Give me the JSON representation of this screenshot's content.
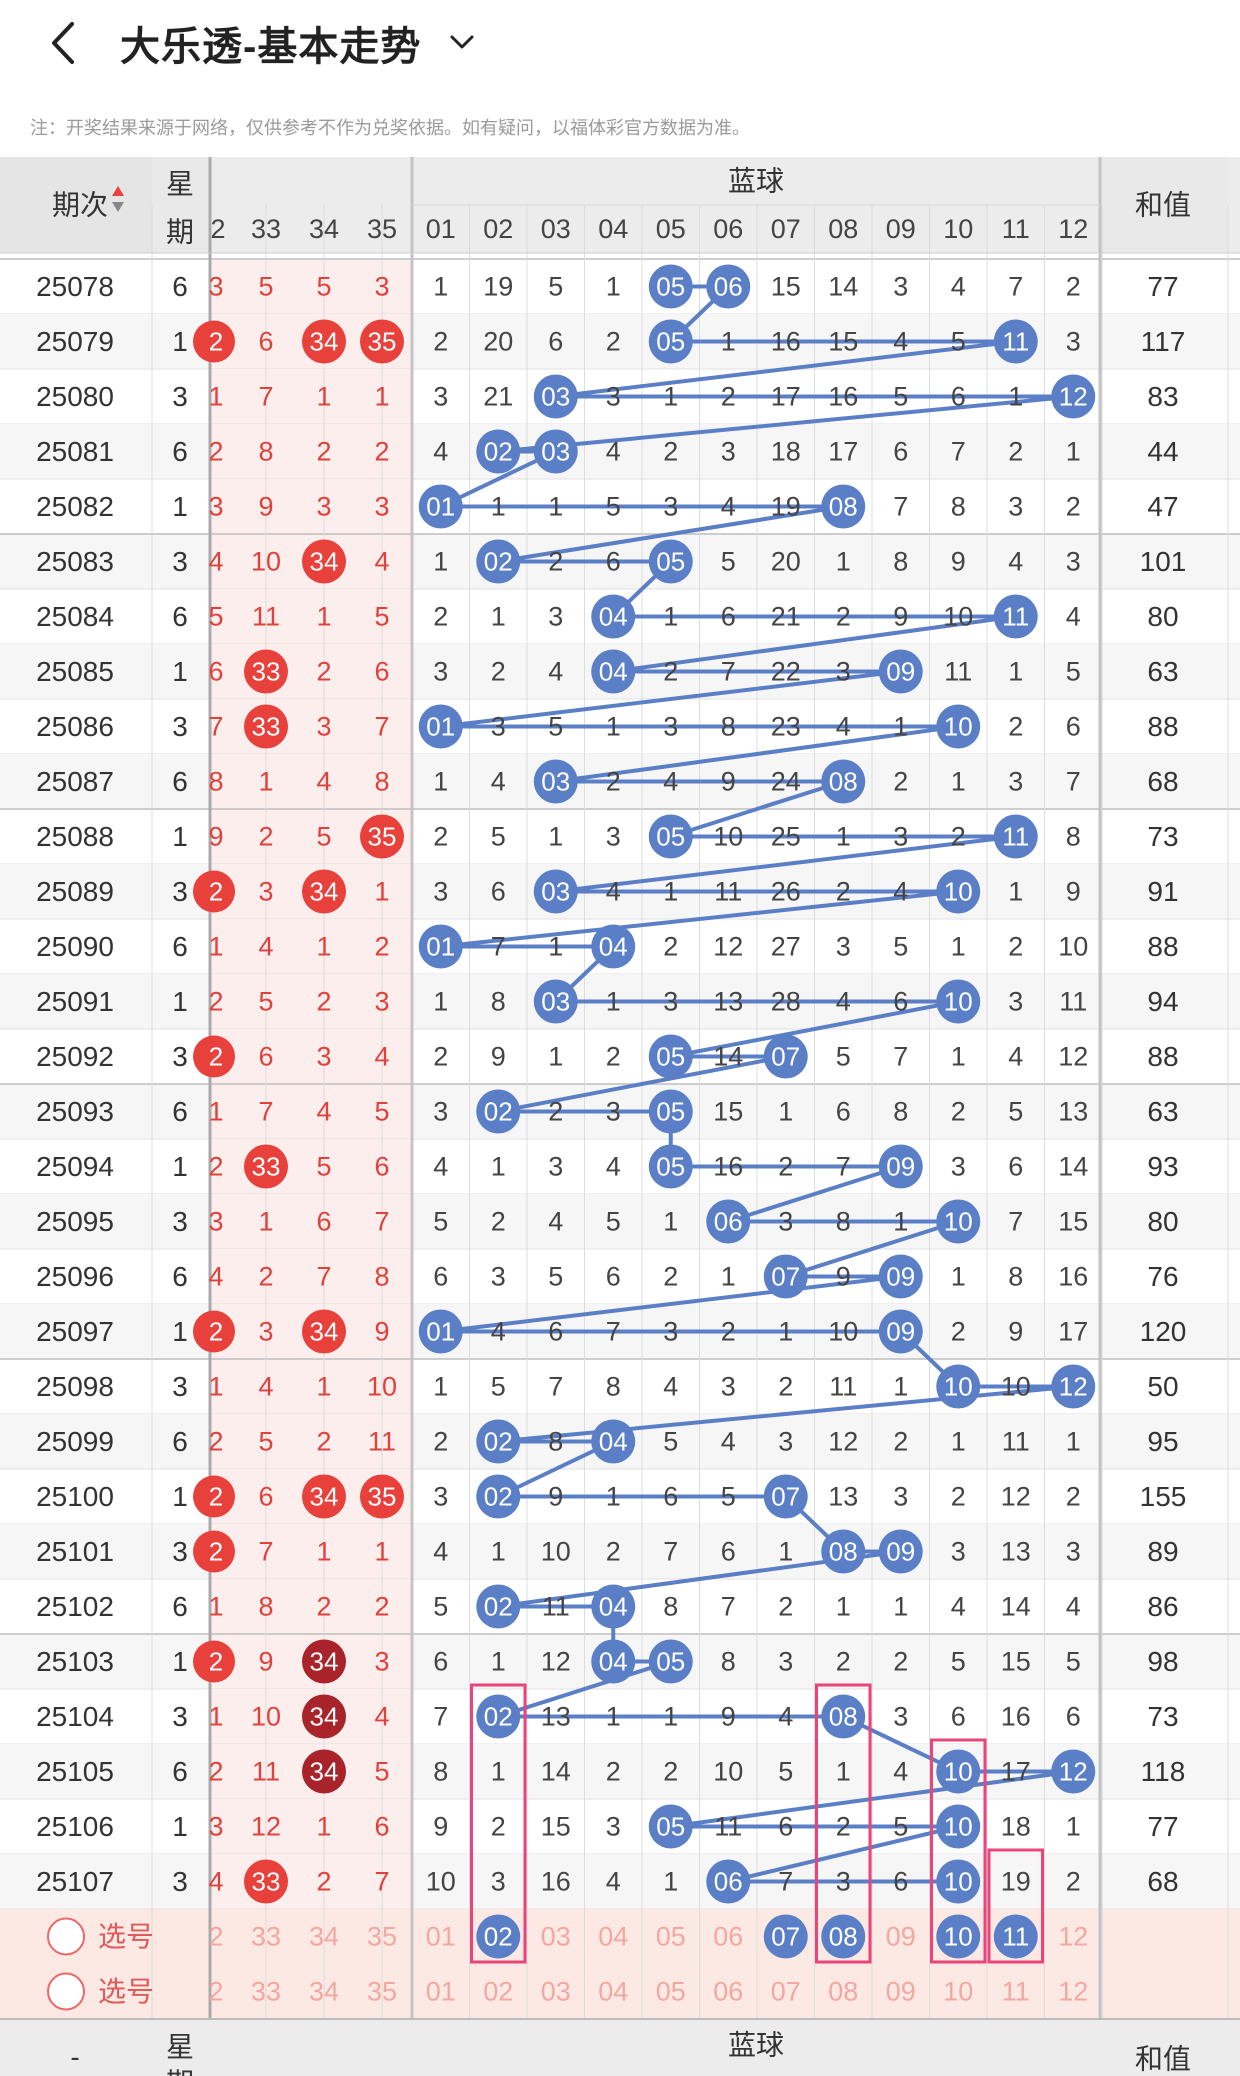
{
  "header": {
    "title": "大乐透-基本走势"
  },
  "notice": "注：开奖结果来源于网络，仅供参考不作为兑奖依据。如有疑问，以福体彩官方数据为准。",
  "columns": {
    "period": "期次",
    "weekday_a": "星",
    "weekday_b": "期",
    "blue_header": "蓝球",
    "sum": "和值",
    "front_partial": "2",
    "front": [
      "33",
      "34",
      "35"
    ],
    "blue": [
      "01",
      "02",
      "03",
      "04",
      "05",
      "06",
      "07",
      "08",
      "09",
      "10",
      "11",
      "12"
    ]
  },
  "rows": [
    {
      "p": "25078",
      "w": "6",
      "fp": "3",
      "f": [
        "5",
        "5",
        "3"
      ],
      "fh": [],
      "b": [
        1,
        19,
        5,
        1,
        0,
        0,
        15,
        14,
        3,
        4,
        7,
        2
      ],
      "hit": [
        5,
        6
      ],
      "s": "77"
    },
    {
      "p": "25079",
      "w": "1",
      "fp": "2",
      "f": [
        "6",
        "34",
        "35"
      ],
      "fh": [
        1,
        2
      ],
      "b": [
        2,
        20,
        6,
        2,
        0,
        1,
        16,
        15,
        4,
        5,
        0,
        3
      ],
      "hit": [
        5,
        11
      ],
      "s": "117",
      "fpr": true
    },
    {
      "p": "25080",
      "w": "3",
      "fp": "1",
      "f": [
        "7",
        "1",
        "1"
      ],
      "fh": [],
      "b": [
        3,
        21,
        0,
        3,
        1,
        2,
        17,
        16,
        5,
        6,
        1,
        0
      ],
      "hit": [
        3,
        12
      ],
      "s": "83"
    },
    {
      "p": "25081",
      "w": "6",
      "fp": "2",
      "f": [
        "8",
        "2",
        "2"
      ],
      "fh": [],
      "b": [
        4,
        0,
        0,
        4,
        2,
        3,
        18,
        17,
        6,
        7,
        2,
        1
      ],
      "hit": [
        2,
        3
      ],
      "s": "44"
    },
    {
      "p": "25082",
      "w": "1",
      "fp": "3",
      "f": [
        "9",
        "3",
        "3"
      ],
      "fh": [],
      "b": [
        0,
        1,
        1,
        5,
        3,
        4,
        19,
        0,
        7,
        8,
        3,
        2
      ],
      "hit": [
        1,
        8
      ],
      "s": "47"
    },
    {
      "p": "25083",
      "w": "3",
      "fp": "4",
      "f": [
        "10",
        "34",
        "4"
      ],
      "fh": [
        1
      ],
      "b": [
        1,
        0,
        2,
        6,
        0,
        5,
        20,
        1,
        8,
        9,
        4,
        3
      ],
      "hit": [
        2,
        5
      ],
      "s": "101"
    },
    {
      "p": "25084",
      "w": "6",
      "fp": "5",
      "f": [
        "11",
        "1",
        "5"
      ],
      "fh": [],
      "b": [
        2,
        1,
        3,
        0,
        1,
        6,
        21,
        2,
        9,
        10,
        0,
        4
      ],
      "hit": [
        4,
        11
      ],
      "s": "80"
    },
    {
      "p": "25085",
      "w": "1",
      "fp": "6",
      "f": [
        "33",
        "2",
        "6"
      ],
      "fh": [
        0
      ],
      "b": [
        3,
        2,
        4,
        0,
        2,
        7,
        22,
        3,
        0,
        11,
        1,
        5
      ],
      "hit": [
        4,
        9
      ],
      "s": "63"
    },
    {
      "p": "25086",
      "w": "3",
      "fp": "7",
      "f": [
        "33",
        "3",
        "7"
      ],
      "fh": [
        0
      ],
      "b": [
        0,
        3,
        5,
        1,
        3,
        8,
        23,
        4,
        1,
        0,
        2,
        6
      ],
      "hit": [
        1,
        10
      ],
      "s": "88"
    },
    {
      "p": "25087",
      "w": "6",
      "fp": "8",
      "f": [
        "1",
        "4",
        "8"
      ],
      "fh": [],
      "b": [
        1,
        4,
        0,
        2,
        4,
        9,
        24,
        0,
        2,
        1,
        3,
        7
      ],
      "hit": [
        3,
        8
      ],
      "s": "68"
    },
    {
      "p": "25088",
      "w": "1",
      "fp": "9",
      "f": [
        "2",
        "5",
        "35"
      ],
      "fh": [
        2
      ],
      "b": [
        2,
        5,
        1,
        3,
        0,
        10,
        25,
        1,
        3,
        2,
        0,
        8
      ],
      "hit": [
        5,
        11
      ],
      "s": "73"
    },
    {
      "p": "25089",
      "w": "3",
      "fp": "2",
      "f": [
        "3",
        "34",
        "1"
      ],
      "fh": [
        1
      ],
      "b": [
        3,
        6,
        0,
        4,
        1,
        11,
        26,
        2,
        4,
        0,
        1,
        9
      ],
      "hit": [
        3,
        10
      ],
      "s": "91",
      "fpr": true
    },
    {
      "p": "25090",
      "w": "6",
      "fp": "1",
      "f": [
        "4",
        "1",
        "2"
      ],
      "fh": [],
      "b": [
        0,
        7,
        1,
        0,
        2,
        12,
        27,
        3,
        5,
        1,
        2,
        10
      ],
      "hit": [
        1,
        4
      ],
      "s": "88"
    },
    {
      "p": "25091",
      "w": "1",
      "fp": "2",
      "f": [
        "5",
        "2",
        "3"
      ],
      "fh": [],
      "b": [
        1,
        8,
        0,
        1,
        3,
        13,
        28,
        4,
        6,
        0,
        3,
        11
      ],
      "hit": [
        3,
        10
      ],
      "s": "94"
    },
    {
      "p": "25092",
      "w": "3",
      "fp": "2",
      "f": [
        "6",
        "3",
        "4"
      ],
      "fh": [],
      "b": [
        2,
        9,
        1,
        2,
        0,
        14,
        0,
        5,
        7,
        1,
        4,
        12
      ],
      "hit": [
        5,
        7
      ],
      "s": "88",
      "fpr": true
    },
    {
      "p": "25093",
      "w": "6",
      "fp": "1",
      "f": [
        "7",
        "4",
        "5"
      ],
      "fh": [],
      "b": [
        3,
        0,
        2,
        3,
        0,
        15,
        1,
        6,
        8,
        2,
        5,
        13
      ],
      "hit": [
        2,
        5
      ],
      "s": "63"
    },
    {
      "p": "25094",
      "w": "1",
      "fp": "2",
      "f": [
        "33",
        "5",
        "6"
      ],
      "fh": [
        0
      ],
      "b": [
        4,
        1,
        3,
        4,
        0,
        16,
        2,
        7,
        0,
        3,
        6,
        14
      ],
      "hit": [
        5,
        9
      ],
      "s": "93"
    },
    {
      "p": "25095",
      "w": "3",
      "fp": "3",
      "f": [
        "1",
        "6",
        "7"
      ],
      "fh": [],
      "b": [
        5,
        2,
        4,
        5,
        1,
        0,
        3,
        8,
        1,
        0,
        7,
        15
      ],
      "hit": [
        6,
        10
      ],
      "s": "80"
    },
    {
      "p": "25096",
      "w": "6",
      "fp": "4",
      "f": [
        "2",
        "7",
        "8"
      ],
      "fh": [],
      "b": [
        6,
        3,
        5,
        6,
        2,
        1,
        0,
        9,
        0,
        1,
        8,
        16
      ],
      "hit": [
        7,
        9
      ],
      "s": "76"
    },
    {
      "p": "25097",
      "w": "1",
      "fp": "2",
      "f": [
        "3",
        "34",
        "9"
      ],
      "fh": [
        1
      ],
      "b": [
        0,
        4,
        6,
        7,
        3,
        2,
        1,
        10,
        0,
        2,
        9,
        17
      ],
      "hit": [
        1,
        9
      ],
      "s": "120",
      "fpr": true
    },
    {
      "p": "25098",
      "w": "3",
      "fp": "1",
      "f": [
        "4",
        "1",
        "10"
      ],
      "fh": [],
      "b": [
        1,
        5,
        7,
        8,
        4,
        3,
        2,
        11,
        1,
        0,
        10,
        0
      ],
      "hit": [
        10,
        12
      ],
      "s": "50"
    },
    {
      "p": "25099",
      "w": "6",
      "fp": "2",
      "f": [
        "5",
        "2",
        "11"
      ],
      "fh": [],
      "b": [
        2,
        0,
        8,
        0,
        5,
        4,
        3,
        12,
        2,
        1,
        11,
        1
      ],
      "hit": [
        2,
        4
      ],
      "s": "95"
    },
    {
      "p": "25100",
      "w": "1",
      "fp": "2",
      "f": [
        "6",
        "34",
        "35"
      ],
      "fh": [
        1,
        2
      ],
      "b": [
        3,
        0,
        9,
        1,
        6,
        5,
        0,
        13,
        3,
        2,
        12,
        2
      ],
      "hit": [
        2,
        7
      ],
      "s": "155",
      "fpr": true
    },
    {
      "p": "25101",
      "w": "3",
      "fp": "2",
      "f": [
        "7",
        "1",
        "1"
      ],
      "fh": [],
      "b": [
        4,
        1,
        10,
        2,
        7,
        6,
        1,
        0,
        0,
        3,
        13,
        3
      ],
      "hit": [
        8,
        9
      ],
      "s": "89",
      "fpr": true
    },
    {
      "p": "25102",
      "w": "6",
      "fp": "1",
      "f": [
        "8",
        "2",
        "2"
      ],
      "fh": [],
      "b": [
        5,
        0,
        11,
        0,
        8,
        7,
        2,
        1,
        1,
        4,
        14,
        4
      ],
      "hit": [
        2,
        4
      ],
      "s": "86"
    },
    {
      "p": "25103",
      "w": "1",
      "fp": "2",
      "f": [
        "9",
        "34",
        "3"
      ],
      "fh": [
        1
      ],
      "dark": true,
      "b": [
        6,
        1,
        12,
        0,
        0,
        8,
        3,
        2,
        2,
        5,
        15,
        5
      ],
      "hit": [
        4,
        5
      ],
      "s": "98",
      "fpr": true
    },
    {
      "p": "25104",
      "w": "3",
      "fp": "1",
      "f": [
        "10",
        "34",
        "4"
      ],
      "fh": [
        1
      ],
      "dark": true,
      "b": [
        7,
        0,
        13,
        1,
        1,
        9,
        4,
        0,
        3,
        6,
        16,
        6
      ],
      "hit": [
        2,
        8
      ],
      "s": "73"
    },
    {
      "p": "25105",
      "w": "6",
      "fp": "2",
      "f": [
        "11",
        "34",
        "5"
      ],
      "fh": [
        1
      ],
      "dark": true,
      "b": [
        8,
        1,
        14,
        2,
        2,
        10,
        5,
        1,
        4,
        0,
        17,
        0
      ],
      "hit": [
        10,
        12
      ],
      "s": "118"
    },
    {
      "p": "25106",
      "w": "1",
      "fp": "3",
      "f": [
        "12",
        "1",
        "6"
      ],
      "fh": [],
      "b": [
        9,
        2,
        15,
        3,
        0,
        11,
        6,
        2,
        5,
        0,
        18,
        1
      ],
      "hit": [
        5,
        10
      ],
      "s": "77"
    },
    {
      "p": "25107",
      "w": "3",
      "fp": "4",
      "f": [
        "33",
        "2",
        "7"
      ],
      "fh": [
        0
      ],
      "b": [
        10,
        3,
        16,
        4,
        1,
        0,
        7,
        3,
        6,
        0,
        19,
        2
      ],
      "hit": [
        6,
        10
      ],
      "s": "68"
    }
  ],
  "select": {
    "label": "选号",
    "front_partial": "2",
    "front": [
      "33",
      "34",
      "35"
    ],
    "blue": [
      "01",
      "02",
      "03",
      "04",
      "05",
      "06",
      "07",
      "08",
      "09",
      "10",
      "11",
      "12"
    ],
    "picked": [
      2,
      7,
      8,
      10,
      11
    ]
  },
  "colors": {
    "blue_ball": "#5b7fc6",
    "red_ball": "#e8413b",
    "dark_red_ball": "#a8232a",
    "red_text": "#e0413a",
    "box": "#e9457a",
    "header_bg": "#ececec",
    "select_bg": "#fde9e4"
  }
}
